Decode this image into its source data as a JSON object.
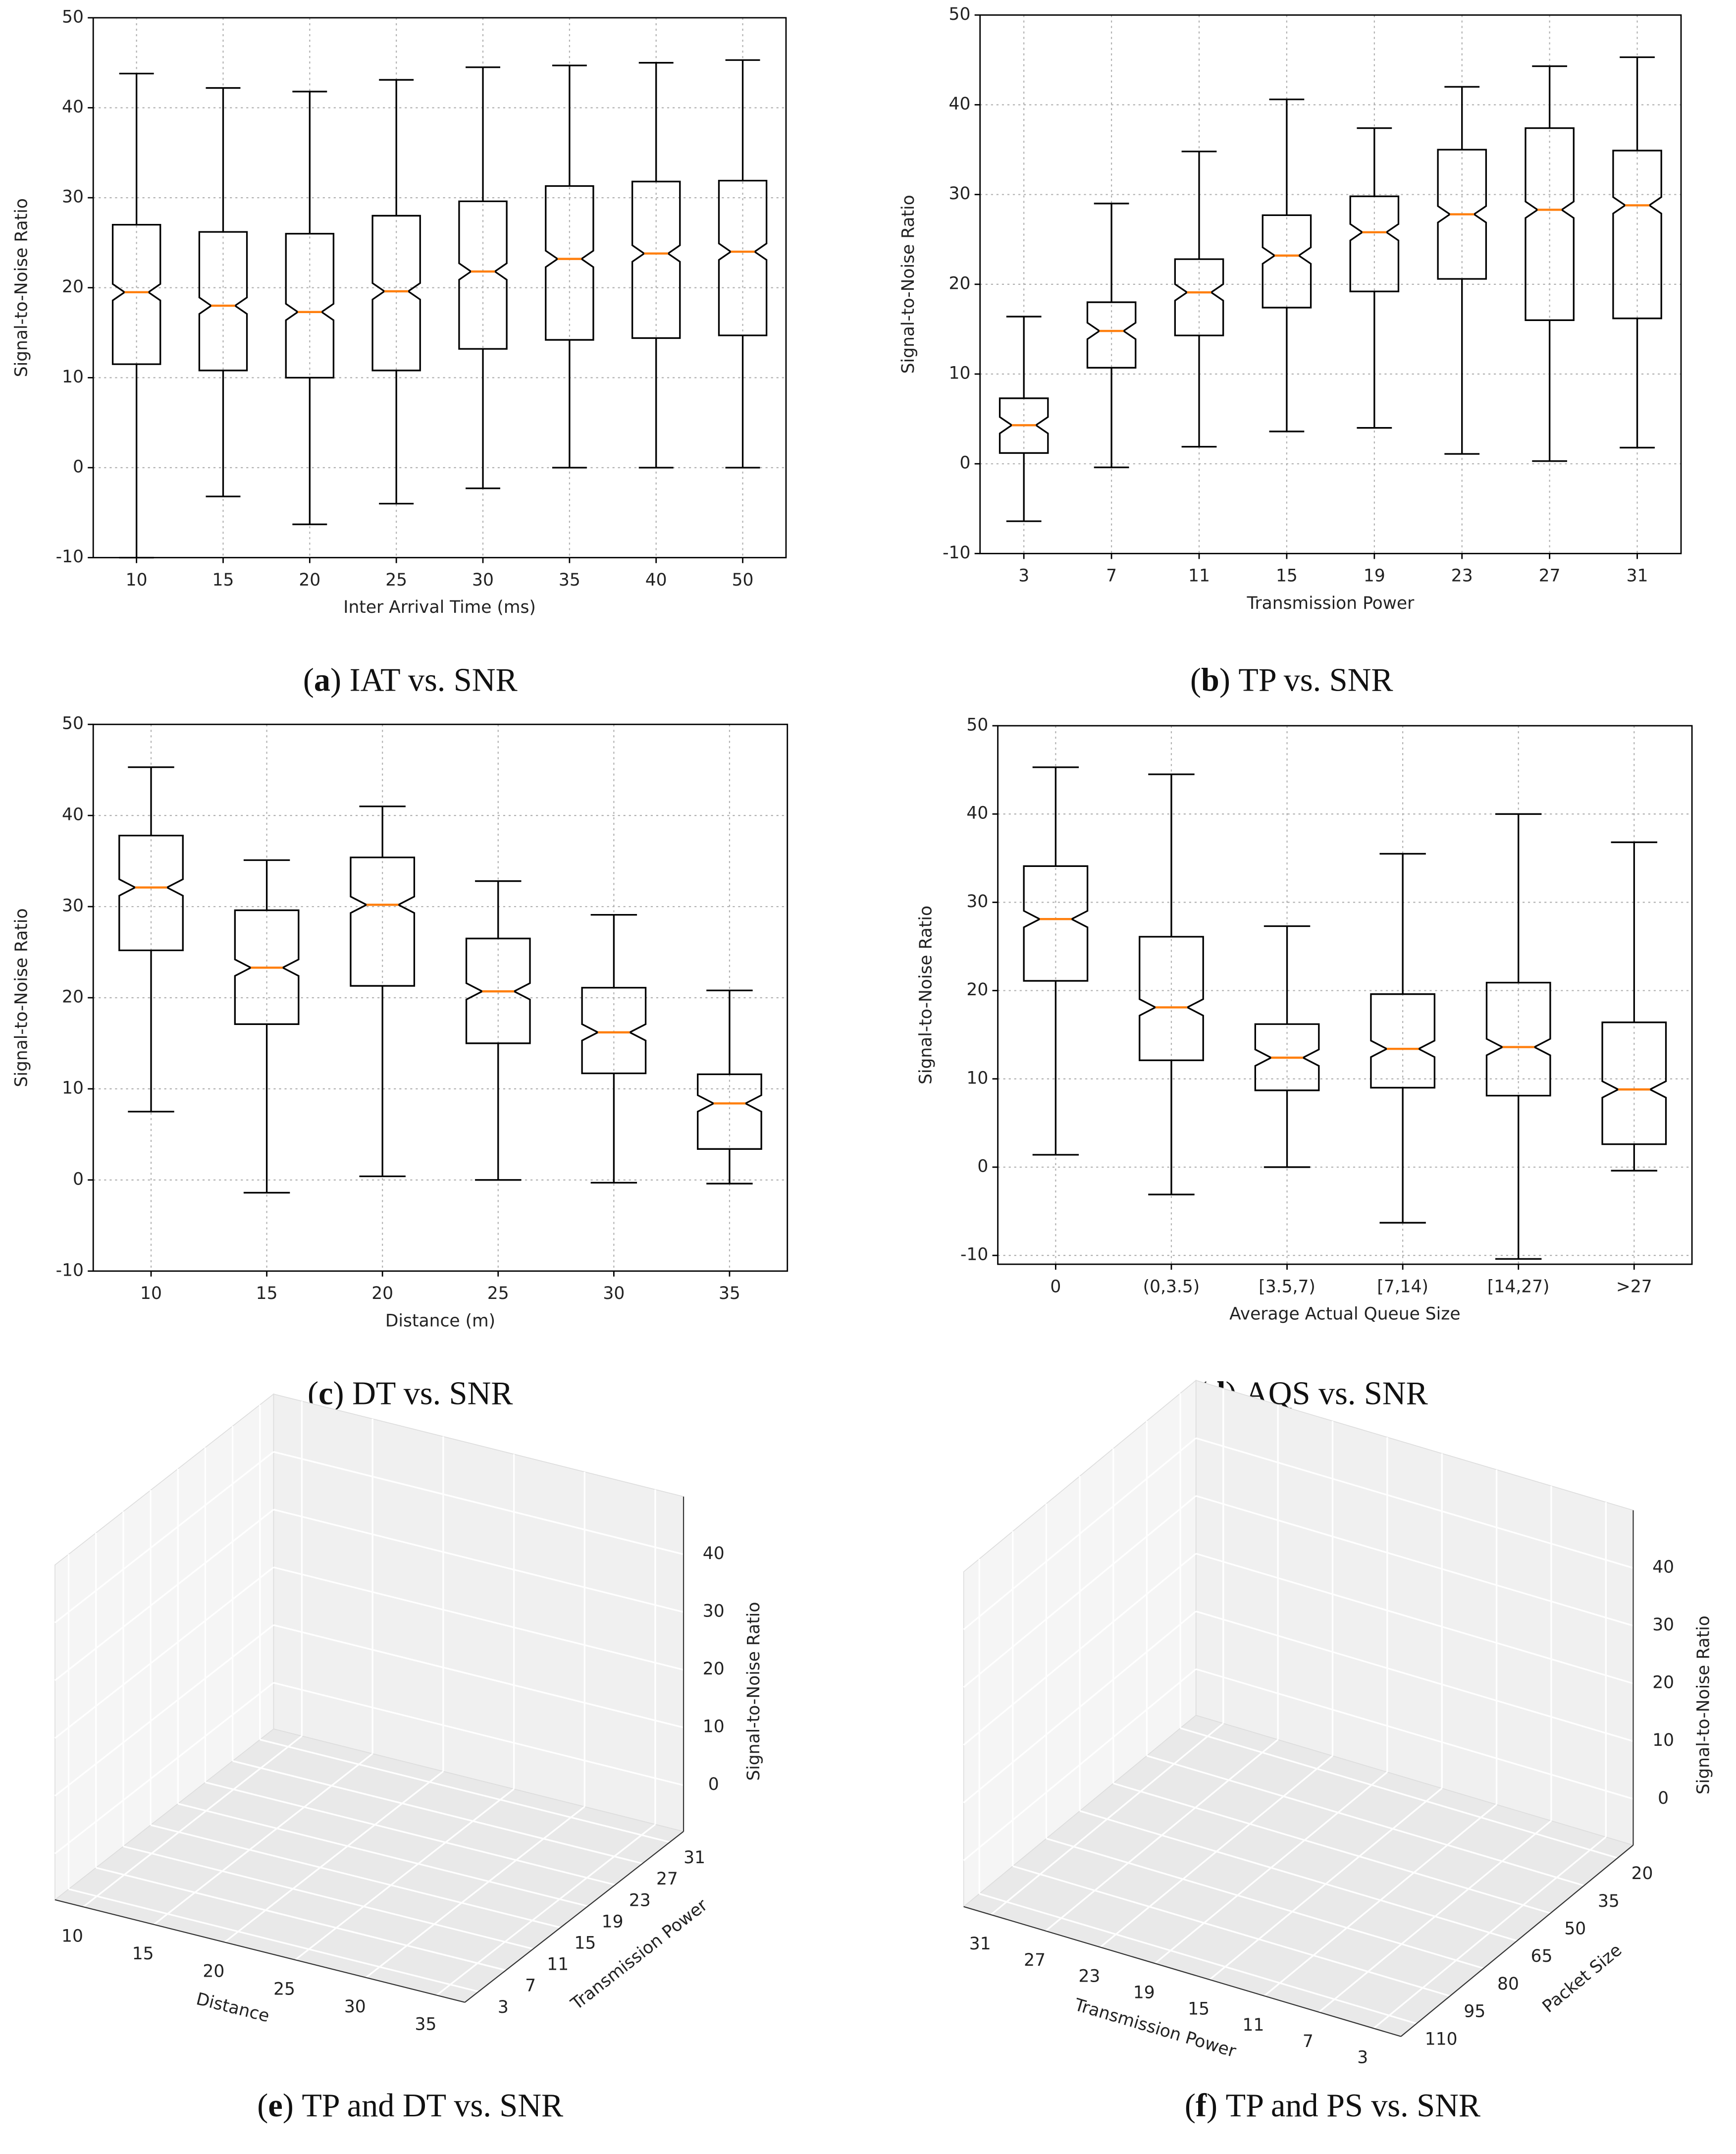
{
  "chart_data": [
    {
      "type": "box",
      "xlabel": "Inter Arrival Time (ms)",
      "ylabel": "Signal-to-Noise Ratio",
      "categories": [
        "10",
        "15",
        "20",
        "25",
        "30",
        "35",
        "40",
        "50"
      ],
      "whislo": [
        -10,
        -3.2,
        -6.3,
        -4,
        -2.3,
        0,
        0,
        0
      ],
      "q1": [
        11.5,
        10.8,
        10,
        10.8,
        13.2,
        14.2,
        14.4,
        14.7
      ],
      "med": [
        19.5,
        18,
        17.3,
        19.6,
        21.8,
        23.2,
        23.8,
        24
      ],
      "q3": [
        27,
        26.2,
        26,
        28,
        29.6,
        31.3,
        31.8,
        31.9
      ],
      "whishi": [
        43.8,
        42.2,
        41.8,
        43.1,
        44.5,
        44.7,
        45,
        45.3
      ],
      "ylim": [
        -10,
        50
      ],
      "yticks": [
        -10,
        0,
        10,
        20,
        30,
        40,
        50
      ],
      "grid": true,
      "caption_letter": "a",
      "caption": "IAT vs. SNR"
    },
    {
      "type": "box",
      "xlabel": "Transmission Power",
      "ylabel": "Signal-to-Noise Ratio",
      "categories": [
        "3",
        "7",
        "11",
        "15",
        "19",
        "23",
        "27",
        "31"
      ],
      "whislo": [
        -6.4,
        -0.4,
        1.9,
        3.6,
        4,
        1.1,
        0.3,
        1.8
      ],
      "q1": [
        1.2,
        10.7,
        14.3,
        17.4,
        19.2,
        20.6,
        16,
        16.2
      ],
      "med": [
        4.3,
        14.8,
        19.1,
        23.2,
        25.8,
        27.8,
        28.3,
        28.8
      ],
      "q3": [
        7.3,
        18,
        22.8,
        27.7,
        29.8,
        35,
        37.4,
        34.9
      ],
      "whishi": [
        16.4,
        29,
        34.8,
        40.6,
        37.4,
        42,
        44.3,
        45.3
      ],
      "ylim": [
        -10,
        50
      ],
      "yticks": [
        -10,
        0,
        10,
        20,
        30,
        40,
        50
      ],
      "grid": true,
      "caption_letter": "b",
      "caption": "TP vs. SNR"
    },
    {
      "type": "box",
      "xlabel": "Distance (m)",
      "ylabel": "Signal-to-Noise Ratio",
      "categories": [
        "10",
        "15",
        "20",
        "25",
        "30",
        "35"
      ],
      "whislo": [
        7.5,
        -1.4,
        0.4,
        0,
        -0.3,
        -0.4
      ],
      "q1": [
        25.2,
        17.1,
        21.3,
        15,
        11.7,
        3.4
      ],
      "med": [
        32.1,
        23.3,
        30.2,
        20.7,
        16.2,
        8.4
      ],
      "q3": [
        37.8,
        29.6,
        35.4,
        26.5,
        21.1,
        11.6
      ],
      "whishi": [
        45.3,
        35.1,
        41,
        32.8,
        29.1,
        20.8
      ],
      "ylim": [
        -10,
        50
      ],
      "yticks": [
        -10,
        0,
        10,
        20,
        30,
        40,
        50
      ],
      "grid": true,
      "caption_letter": "c",
      "caption": "DT vs. SNR"
    },
    {
      "type": "box",
      "xlabel": "Average Actual Queue Size",
      "ylabel": "Signal-to-Noise Ratio",
      "categories": [
        "0",
        "(0,3.5)",
        "[3.5,7)",
        "[7,14)",
        "[14,27)",
        ">27"
      ],
      "whislo": [
        1.4,
        -3.1,
        0,
        -6.3,
        -10.4,
        -0.4
      ],
      "q1": [
        21.1,
        12.1,
        8.7,
        9,
        8.1,
        2.6
      ],
      "med": [
        28.1,
        18.1,
        12.4,
        13.4,
        13.6,
        8.8
      ],
      "q3": [
        34.1,
        26.1,
        16.2,
        19.6,
        20.9,
        16.4
      ],
      "whishi": [
        45.3,
        44.5,
        27.3,
        35.5,
        40,
        36.8
      ],
      "ylim": [
        -11,
        50
      ],
      "yticks": [
        -10,
        0,
        10,
        20,
        30,
        40,
        50
      ],
      "grid": true,
      "caption_letter": "d",
      "caption": "AQS vs. SNR"
    },
    {
      "type": "scatter3d",
      "xlabel": "Distance",
      "ylabel": "Transmission Power",
      "zlabel": "Signal-to-Noise Ratio",
      "xlim": [
        8,
        37
      ],
      "xticks": [
        10,
        15,
        20,
        25,
        30,
        35
      ],
      "ylim": [
        1,
        33
      ],
      "yticks": [
        3,
        7,
        11,
        15,
        19,
        23,
        27,
        31
      ],
      "zlim": [
        -8,
        50
      ],
      "zticks": [
        0,
        10,
        20,
        30,
        40
      ],
      "caption_letter": "e",
      "caption": "TP and DT vs. SNR"
    },
    {
      "type": "scatter3d",
      "xlabel": "Transmission Power",
      "ylabel": "Packet Size",
      "zlabel": "Signal-to-Noise Ratio",
      "xlim": [
        33,
        1
      ],
      "xticks": [
        31,
        27,
        23,
        19,
        15,
        11,
        7,
        3
      ],
      "ylim": [
        117,
        13
      ],
      "yticks": [
        110,
        95,
        80,
        65,
        50,
        35,
        20
      ],
      "zlim": [
        -8,
        50
      ],
      "zticks": [
        0,
        10,
        20,
        30,
        40
      ],
      "caption_letter": "f",
      "caption": "TP and PS vs. SNR"
    }
  ]
}
